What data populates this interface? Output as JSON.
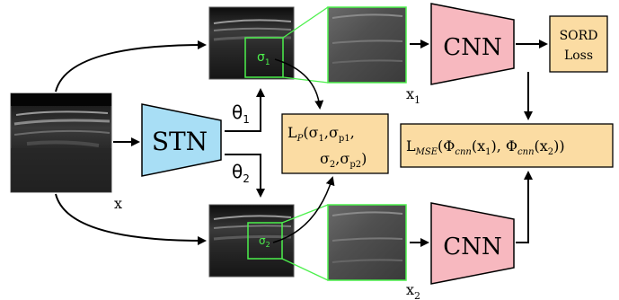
{
  "colors": {
    "stn_fill": "#a8def5",
    "cnn_fill": "#f7b8bf",
    "loss_fill": "#fbdca3",
    "crop_green": "#4cf04c",
    "ultrasound_bg": "#1a1a1a"
  },
  "input": {
    "label": "x"
  },
  "stn": {
    "label": "STN"
  },
  "theta": {
    "top_base": "θ",
    "top_sub": "1",
    "bottom_base": "θ",
    "bottom_sub": "2"
  },
  "branch_top": {
    "sigma_base": "σ",
    "sigma_sub": "1",
    "view_base": "x",
    "view_sub": "1"
  },
  "branch_bottom": {
    "sigma_base": "σ",
    "sigma_sub": "2",
    "view_base": "x",
    "view_sub": "2"
  },
  "cnn": {
    "top_label": "CNN",
    "bottom_label": "CNN"
  },
  "sord": {
    "line1": "SORD",
    "line2": "Loss"
  },
  "lp": {
    "prefix": "L",
    "prefix_sub": "P",
    "line1_rest": "(σ",
    "s1_sub": "1",
    "sep1": ",σ",
    "sp1_sub": "p1",
    "line1_end": ",",
    "line2_start": "σ",
    "s2_sub": "2",
    "sep2": ",σ",
    "sp2_sub": "p2",
    "line2_end": ")"
  },
  "lmse": {
    "prefix": "L",
    "prefix_sub": "MSE",
    "open": "(Φ",
    "phi1_sub": "cnn",
    "arg1": "(x",
    "arg1_sub": "1",
    "mid": "), Φ",
    "phi2_sub": "cnn",
    "arg2": "(x",
    "arg2_sub": "2",
    "close": "))"
  }
}
